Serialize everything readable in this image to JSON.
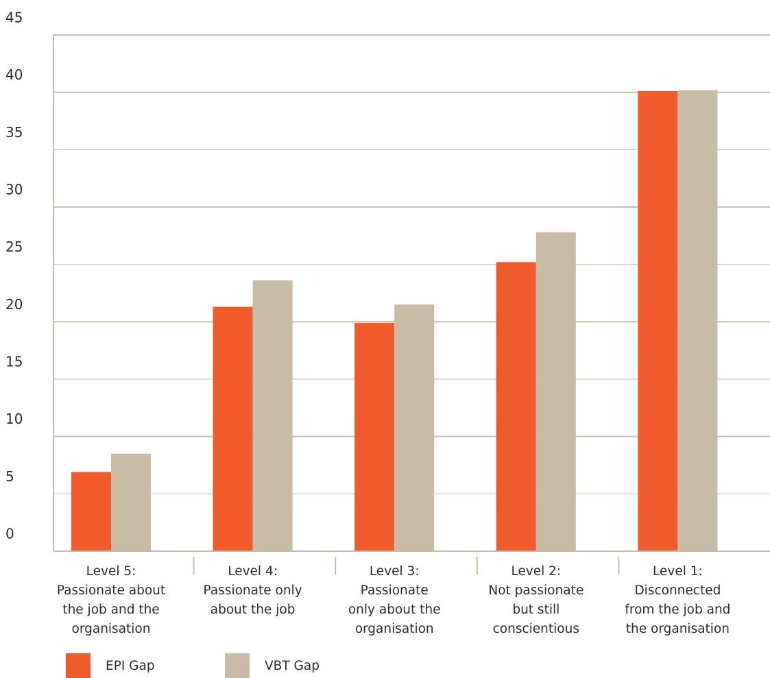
{
  "chart_data": {
    "type": "bar",
    "categories": [
      [
        "Level 5:",
        "Passionate about",
        "the job and the",
        "organisation"
      ],
      [
        "Level 4:",
        "Passionate only",
        "about the job"
      ],
      [
        "Level 3:",
        "Passionate",
        "only about the",
        "organisation"
      ],
      [
        "Level 2:",
        "Not passionate",
        "but still",
        "conscientious"
      ],
      [
        "Level 1:",
        "Disconnected",
        "from the job and",
        "the organisation"
      ]
    ],
    "series": [
      {
        "name": "EPI Gap",
        "color": "#f15a2b",
        "values": [
          6.9,
          21.3,
          19.9,
          25.2,
          40.1
        ]
      },
      {
        "name": "VBT Gap",
        "color": "#c8bca6",
        "values": [
          8.5,
          23.6,
          21.5,
          27.8,
          40.2
        ]
      }
    ],
    "y_ticks": [
      "0",
      "5",
      "10",
      "15",
      "20",
      "25",
      "30",
      "35",
      "40",
      "45"
    ],
    "ylim": [
      0,
      45
    ],
    "title": "",
    "xlabel": "",
    "ylabel": "",
    "grid": true,
    "legend_position": "bottom-left",
    "axis_color": "#c8bca6"
  }
}
